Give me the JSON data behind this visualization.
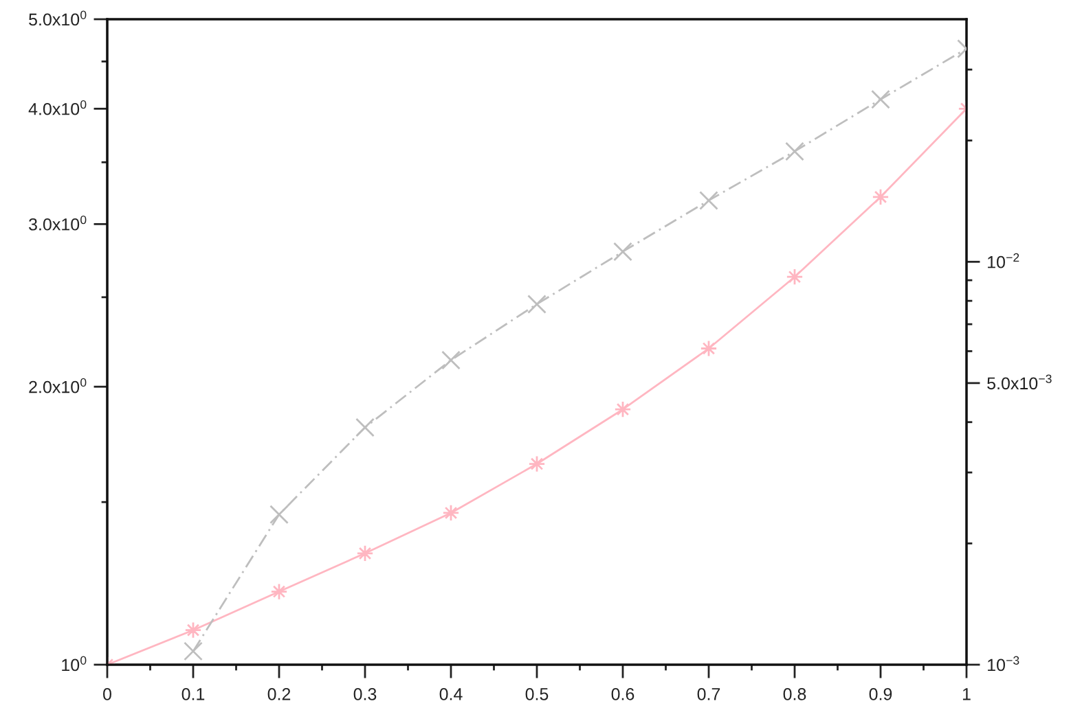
{
  "chart_data": [
    {
      "type": "line",
      "x": [
        0,
        0.1,
        0.2,
        0.3,
        0.4,
        0.5,
        0.6,
        0.7,
        0.8,
        0.9,
        1
      ],
      "xlim": [
        0,
        1
      ],
      "xticks": [
        0,
        {
          "value": 0.05,
          "label": null
        },
        0.1,
        {
          "value": 0.15,
          "label": null
        },
        0.2,
        {
          "value": 0.25,
          "label": null
        },
        0.3,
        {
          "value": 0.35,
          "label": null
        },
        0.4,
        {
          "value": 0.45,
          "label": null
        },
        0.5,
        {
          "value": 0.55,
          "label": null
        },
        0.6,
        {
          "value": 0.65,
          "label": null
        },
        0.7,
        {
          "value": 0.75,
          "label": null
        },
        0.8,
        {
          "value": 0.85,
          "label": null
        },
        0.9,
        {
          "value": 0.95,
          "label": null
        },
        1
      ],
      "ylim": [
        1,
        5
      ],
      "yticks": [
        {
          "value": 1,
          "label": "10$^{0}$"
        },
        {
          "value": 1.5,
          "label": null
        },
        {
          "value": 2,
          "label": "2.0x10$^{0}$"
        },
        {
          "value": 2.5,
          "label": null
        },
        {
          "value": 3,
          "label": "3.0x10$^{0}$"
        },
        {
          "value": 3.5,
          "label": null
        },
        {
          "value": 4,
          "label": "4.0x10$^{0}$"
        },
        {
          "value": 4.5,
          "label": null
        },
        {
          "value": 5,
          "label": "5.0x10$^{0}$"
        }
      ],
      "log": true,
      "grid": false,
      "series": [
        {
          "color": "#ffb6c1",
          "marker": "star",
          "line_style": "solid",
          "values": [
            1.0,
            1.09,
            1.2,
            1.32,
            1.46,
            1.65,
            1.89,
            2.2,
            2.63,
            3.21,
            4.0
          ]
        }
      ]
    },
    {
      "type": "line",
      "xlim": [
        0,
        1
      ],
      "ylim": [
        0.001,
        0.04
      ],
      "yticks": [
        {
          "value": 0.001,
          "label": "10$^{−3}$"
        },
        {
          "value": 0.002,
          "label": null
        },
        {
          "value": 0.003,
          "label": null
        },
        {
          "value": 0.004,
          "label": null
        },
        {
          "value": 0.005,
          "label": "5.0x10$^{−3}$"
        },
        {
          "value": 0.006,
          "label": null
        },
        {
          "value": 0.007,
          "label": null
        },
        {
          "value": 0.008,
          "label": null
        },
        {
          "value": 0.009,
          "label": null
        },
        {
          "value": 0.01,
          "label": "10$^{−2}$"
        },
        {
          "value": 0.02,
          "label": null
        },
        {
          "value": 0.03,
          "label": null
        }
      ],
      "log": true,
      "tick_labels": "y",
      "series": [
        {
          "color": "#bebebe",
          "marker": "cross",
          "line_style": "dashdot",
          "x": [
            0.1,
            0.2,
            0.3,
            0.4,
            0.5,
            0.6,
            0.7,
            0.8,
            0.9,
            1
          ],
          "values": [
            0.00108,
            0.00236,
            0.00388,
            0.0057,
            0.00785,
            0.0106,
            0.0142,
            0.0188,
            0.0253,
            0.0338
          ]
        }
      ]
    }
  ]
}
